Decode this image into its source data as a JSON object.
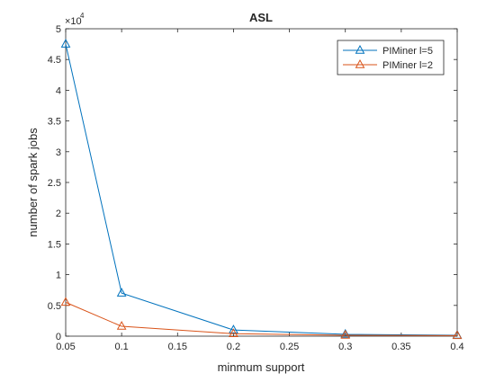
{
  "chart_data": {
    "type": "line",
    "title": "ASL",
    "xlabel": "minmum support",
    "ylabel": "number of spark jobs",
    "y_exponent_label": "×10",
    "y_exponent_power": "4",
    "xlim": [
      0.05,
      0.4
    ],
    "ylim": [
      0,
      50000
    ],
    "x_ticks": [
      "0.05",
      "0.1",
      "0.15",
      "0.2",
      "0.25",
      "0.3",
      "0.35",
      "0.4"
    ],
    "x_tick_values": [
      0.05,
      0.1,
      0.15,
      0.2,
      0.25,
      0.3,
      0.35,
      0.4
    ],
    "y_ticks": [
      "0",
      "0.5",
      "1",
      "1.5",
      "2",
      "2.5",
      "3",
      "3.5",
      "4",
      "4.5",
      "5"
    ],
    "y_tick_values": [
      0,
      5000,
      10000,
      15000,
      20000,
      25000,
      30000,
      35000,
      40000,
      45000,
      50000
    ],
    "grid": false,
    "legend_position": "top-right",
    "marker": "triangle",
    "series": [
      {
        "name": "PIMiner l=5",
        "color": "#0072BD",
        "x": [
          0.05,
          0.1,
          0.2,
          0.3,
          0.4
        ],
        "y": [
          47500,
          7000,
          1000,
          300,
          150
        ]
      },
      {
        "name": "PIMiner l=2",
        "color": "#D95319",
        "x": [
          0.05,
          0.1,
          0.2,
          0.3,
          0.4
        ],
        "y": [
          5500,
          1600,
          400,
          150,
          100
        ]
      }
    ]
  }
}
